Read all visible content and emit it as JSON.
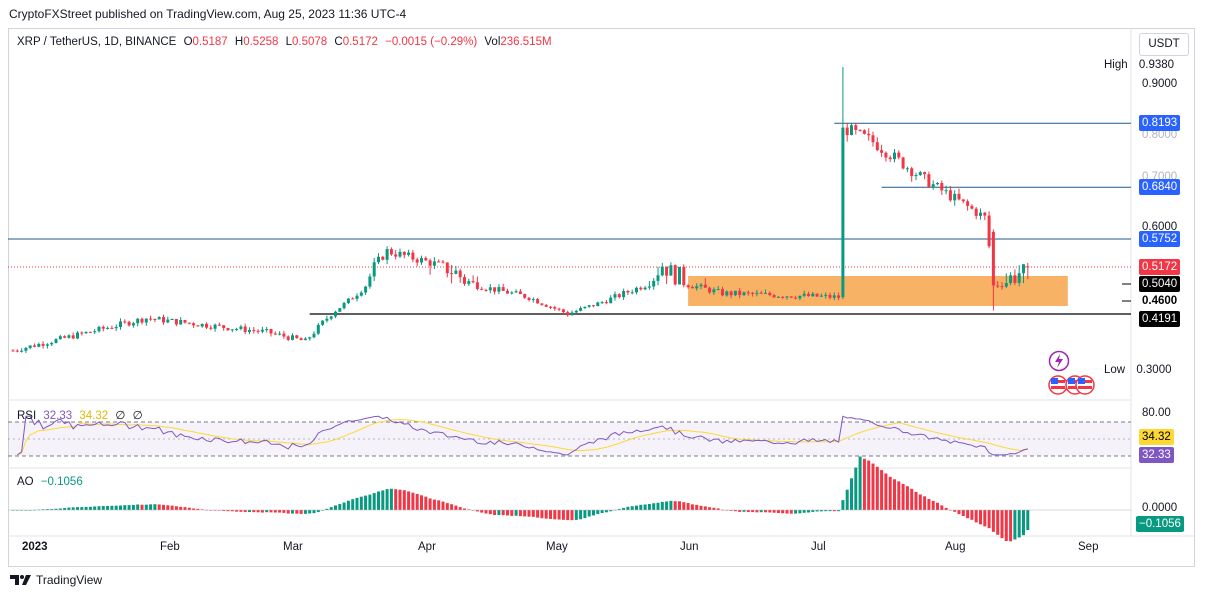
{
  "publisher_line": "CryptoFXStreet published on TradingView.com, Aug 25, 2023 11:36 UTC-4",
  "legend": {
    "symbol": "XRP / TetherUS, 1D, BINANCE",
    "o_key": "O",
    "o": "0.5187",
    "h_key": "H",
    "h": "0.5258",
    "l_key": "L",
    "l": "0.5078",
    "c_key": "C",
    "c": "0.5172",
    "change": "−0.0015 (−0.29%)",
    "vol_key": "Vol",
    "vol": "236.515M"
  },
  "currency_button": "USDT",
  "price_axis": {
    "high_label": "High",
    "high_value": "0.9380",
    "low_label": "Low",
    "low_value": "0.3000",
    "ticks": [
      "0.9000",
      "0.8000",
      "0.7000",
      "0.6000"
    ],
    "levels": {
      "l8193": "0.8193",
      "l6840": "0.6840",
      "l5752": "0.5752",
      "current": "0.5172",
      "l5040": "0.5040",
      "l4600": "0.4600",
      "l4191": "0.4191"
    }
  },
  "rsi": {
    "name": "RSI",
    "value": "32.33",
    "ma_value": "34.32",
    "p1": "∅",
    "p2": "∅",
    "axis_80": "80.00",
    "label_ma": "34.32",
    "label_rsi": "32.33"
  },
  "ao": {
    "name": "AO",
    "value": "−0.1056",
    "axis_zero": "0.0000",
    "label": "−0.1056"
  },
  "time_axis": [
    "2023",
    "Feb",
    "Mar",
    "Apr",
    "May",
    "Jun",
    "Jul",
    "Aug",
    "Sep"
  ],
  "footer": "TradingView",
  "colors": {
    "up": "#089981",
    "down": "#f23645",
    "blue_label": "#2962ff",
    "zone": "#f7a54a",
    "rsi_line": "#7e57c2",
    "rsi_ma": "#fdd835",
    "line": "#1e5a8c"
  },
  "chart_data": {
    "type": "candlestick",
    "symbol": "XRP / TetherUS",
    "timeframe": "1D",
    "x_range": [
      "2023-01-01",
      "2023-08-25"
    ],
    "y_range": [
      0.3,
      0.938
    ],
    "key_points": [
      {
        "date": "2023-01-01",
        "close": 0.34
      },
      {
        "date": "2023-02-01",
        "close": 0.41
      },
      {
        "date": "2023-03-01",
        "close": 0.38
      },
      {
        "date": "2023-03-10",
        "close": 0.36
      },
      {
        "date": "2023-03-29",
        "close": 0.55
      },
      {
        "date": "2023-04-15",
        "close": 0.51
      },
      {
        "date": "2023-05-01",
        "close": 0.47
      },
      {
        "date": "2023-05-10",
        "close": 0.42
      },
      {
        "date": "2023-06-01",
        "close": 0.52
      },
      {
        "date": "2023-06-15",
        "close": 0.48
      },
      {
        "date": "2023-07-12",
        "close": 0.47
      },
      {
        "date": "2023-07-13",
        "high": 0.938,
        "close": 0.81
      },
      {
        "date": "2023-07-20",
        "close": 0.78
      },
      {
        "date": "2023-08-01",
        "close": 0.7
      },
      {
        "date": "2023-08-15",
        "close": 0.62
      },
      {
        "date": "2023-08-17",
        "low": 0.43,
        "close": 0.5
      },
      {
        "date": "2023-08-25",
        "close": 0.5172
      }
    ],
    "horizontal_levels": [
      0.8193,
      0.684,
      0.5752,
      0.4191
    ],
    "support_zone": [
      0.46,
      0.504
    ],
    "rsi_last": 32.33,
    "rsi_ma_last": 34.32,
    "ao_last": -0.1056
  }
}
